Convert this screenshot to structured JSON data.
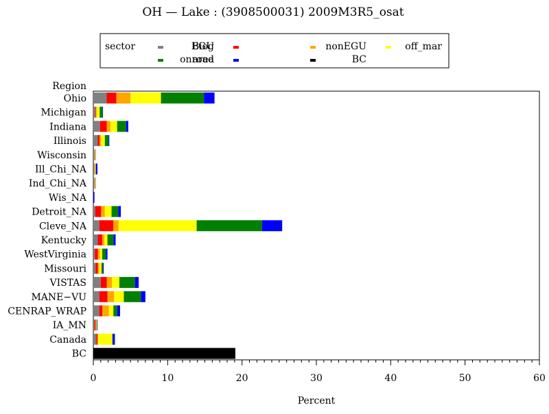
{
  "chart_data": {
    "type": "bar",
    "orientation": "horizontal",
    "stacked": true,
    "title": "OH  —  Lake : (3908500031)  2009M3R5_osat",
    "xlabel": "Percent",
    "ylabel": "Region",
    "xlim": [
      0,
      60
    ],
    "xticks": [
      0,
      10,
      20,
      30,
      40,
      50,
      60
    ],
    "grid": false,
    "legend_title": "sector",
    "legend_position": "top",
    "categories": [
      "Ohio",
      "Michigan",
      "Indiana",
      "Illinois",
      "Wisconsin",
      "Ill_Chi_NA",
      "Ind_Chi_NA",
      "Wis_NA",
      "Detroit_NA",
      "Cleve_NA",
      "Kentucky",
      "WestVirginia",
      "Missouri",
      "VISTAS",
      "MANE−VU",
      "CENRAP_WRAP",
      "IA_MN",
      "Canada",
      "BC"
    ],
    "series": [
      {
        "name": "Biog",
        "color": "#808080",
        "values": [
          1.8,
          0.25,
          0.9,
          0.6,
          0.1,
          0.1,
          0.1,
          0,
          0.25,
          0.8,
          0.6,
          0.2,
          0.3,
          1.0,
          0.8,
          0.8,
          0.15,
          0.4,
          0
        ]
      },
      {
        "name": "EGU",
        "color": "#ff0000",
        "values": [
          1.3,
          0.1,
          0.9,
          0.25,
          0.05,
          0.05,
          0.05,
          0,
          0.8,
          1.9,
          0.6,
          0.4,
          0.3,
          0.8,
          1.1,
          0.4,
          0.15,
          0.15,
          0
        ]
      },
      {
        "name": "nonEGU",
        "color": "#ffa500",
        "values": [
          1.9,
          0.1,
          0.5,
          0.2,
          0.05,
          0.05,
          0.05,
          0,
          0.5,
          0.7,
          0.3,
          0.3,
          0.2,
          0.7,
          0.9,
          0.9,
          0.1,
          0.1,
          0
        ]
      },
      {
        "name": "off_mar",
        "color": "#ffff00",
        "values": [
          4.1,
          0.4,
          0.9,
          0.5,
          0.05,
          0.1,
          0.05,
          0,
          0.9,
          10.5,
          0.4,
          0.3,
          0.3,
          1.0,
          1.3,
          0.6,
          0.05,
          1.9,
          0
        ]
      },
      {
        "name": "onroad",
        "color": "#008000",
        "values": [
          5.8,
          0.4,
          1.2,
          0.5,
          0.05,
          0.05,
          0.05,
          0,
          0.9,
          8.8,
          0.8,
          0.5,
          0.2,
          2.1,
          2.3,
          0.5,
          0.05,
          0.05,
          0
        ]
      },
      {
        "name": "area",
        "color": "#0000ff",
        "values": [
          1.4,
          0.05,
          0.3,
          0.1,
          0.02,
          0.2,
          0.02,
          0.15,
          0.35,
          2.7,
          0.3,
          0.2,
          0.1,
          0.5,
          0.6,
          0.4,
          0.05,
          0.3,
          0
        ]
      },
      {
        "name": "BC",
        "color": "#000000",
        "values": [
          0,
          0,
          0,
          0,
          0,
          0,
          0,
          0,
          0,
          0,
          0,
          0,
          0,
          0,
          0,
          0,
          0,
          0,
          19.1
        ]
      }
    ]
  }
}
